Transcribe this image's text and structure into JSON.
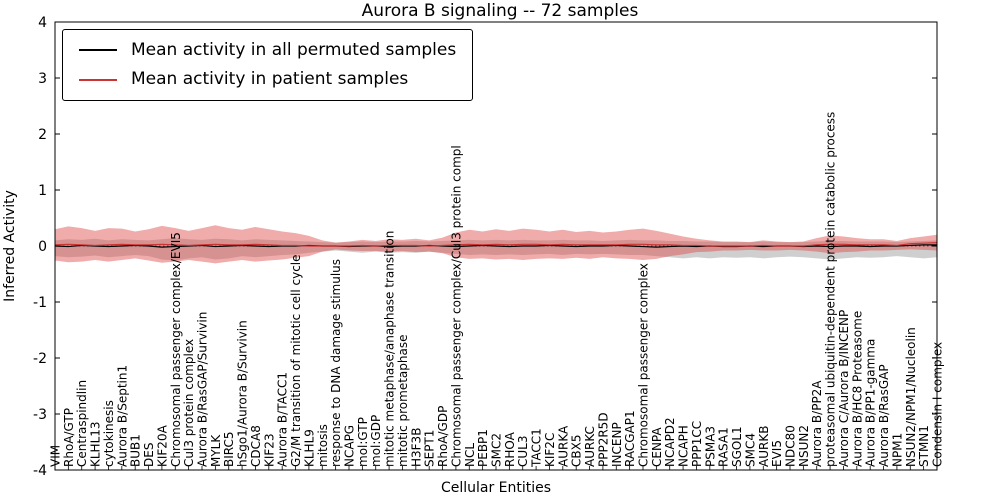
{
  "chart_data": {
    "type": "line",
    "title": "Aurora B signaling -- 72 samples",
    "xlabel": "Cellular Entities",
    "ylabel": "Inferred Activity",
    "ylim": [
      -4,
      4
    ],
    "yticks": [
      -4,
      -3,
      -2,
      -1,
      0,
      1,
      2,
      3,
      4
    ],
    "grid": false,
    "legend_position": "upper left",
    "zero_line_style": "dotted",
    "categories": [
      "VIM",
      "RhoA/GTP",
      "Centraspindlin",
      "KLHL13",
      "cytokinesis",
      "Aurora B/Septin1",
      "BUB1",
      "DES",
      "KIF20A",
      "Chromosomal passenger complex/EVI5",
      "Cul3 protein complex",
      "Aurora B/RasGAP/Survivin",
      "MYLK",
      "BIRC5",
      "hSgo1/Aurora B/Survivin",
      "CDCA8",
      "KIF23",
      "Aurora B/TACC1",
      "G2/M transition of mitotic cell cycle",
      "KLHL9",
      "mitosis",
      "response to DNA damage stimulus",
      "NCAPG",
      "mol:GTP",
      "mol:GDP",
      "mitotic metaphase/anaphase transition",
      "mitotic prometaphase",
      "H3F3B",
      "SEPT1",
      "RhoA/GDP",
      "Chromosomal passenger complex/Cul3 protein compl",
      "NCL",
      "PEBP1",
      "SMC2",
      "RHOA",
      "CUL3",
      "TACC1",
      "KIF2C",
      "AURKA",
      "CBX5",
      "AURKC",
      "PPP2R5D",
      "INCENP",
      "RACGAP1",
      "Chromosomal passenger complex",
      "CENPA",
      "NCAPD2",
      "NCAPH",
      "PPP1CC",
      "PSMA3",
      "RASA1",
      "SGOL1",
      "SMC4",
      "AURKB",
      "EVI5",
      "NDC80",
      "NSUN2",
      "Aurora B/PP2A",
      "proteasomal ubiquitin-dependent protein catabolic process",
      "Aurora C/Aurora B/INCENP",
      "Aurora B/HC8 Proteasome",
      "Aurora B/PP1-gamma",
      "Aurora B/RasGAP",
      "NPM1",
      "NSUN2/NPM1/Nucleolin",
      "STMN1",
      "Condensin I complex"
    ],
    "series": [
      {
        "name": "Mean activity in all permuted samples",
        "color": "#000000",
        "values": [
          0,
          -0.01,
          0.01,
          0,
          -0.01,
          0,
          0.01,
          0,
          -0.02,
          -0.01,
          0,
          0.01,
          -0.01,
          0,
          0.01,
          0,
          -0.01,
          0,
          0,
          0.01,
          0,
          0,
          -0.01,
          0,
          0,
          -0.01,
          0,
          0,
          0.01,
          0,
          -0.01,
          0,
          0.01,
          0,
          -0.01,
          0,
          0,
          0.01,
          0,
          -0.01,
          0,
          0,
          0.01,
          0,
          -0.01,
          -0.02,
          -0.01,
          0,
          -0.01,
          0,
          -0.01,
          -0.01,
          0,
          -0.01,
          0,
          0,
          -0.01,
          0,
          -0.01,
          0,
          0,
          -0.01,
          0,
          0,
          0.01,
          0.02,
          0.02
        ]
      },
      {
        "name": "Mean activity in patient samples",
        "color": "#cc3333",
        "values": [
          0.02,
          0.03,
          0.02,
          0.01,
          0.02,
          0.03,
          0.02,
          0.02,
          0.03,
          0.02,
          0.01,
          0.02,
          0.03,
          0.02,
          0.02,
          0.03,
          0.02,
          0.01,
          0.01,
          0,
          0,
          0,
          0,
          0.01,
          0,
          0.01,
          0.01,
          0.01,
          0,
          0.01,
          0.02,
          0.03,
          0.02,
          0.03,
          0.02,
          0.03,
          0.03,
          0.02,
          0.03,
          0.02,
          0.02,
          0.02,
          0.02,
          0.03,
          0.03,
          0.02,
          0.02,
          0.01,
          0.01,
          0,
          0,
          0,
          0,
          0.01,
          0,
          0,
          0,
          0.02,
          0.03,
          0.03,
          0.02,
          0.02,
          0.02,
          0.01,
          0.04,
          0.05,
          0.06
        ]
      }
    ],
    "bands": [
      {
        "name": "Permuted samples activity spread",
        "color": "#888888",
        "opacity": 0.4,
        "upper": [
          0.1,
          0.12,
          0.11,
          0.13,
          0.1,
          0.12,
          0.11,
          0.1,
          0.12,
          0.14,
          0.12,
          0.11,
          0.13,
          0.12,
          0.1,
          0.12,
          0.11,
          0.1,
          0.09,
          0.08,
          0.07,
          0.06,
          0.07,
          0.08,
          0.07,
          0.08,
          0.08,
          0.09,
          0.08,
          0.09,
          0.1,
          0.11,
          0.1,
          0.11,
          0.1,
          0.11,
          0.1,
          0.1,
          0.11,
          0.1,
          0.1,
          0.09,
          0.1,
          0.11,
          0.1,
          0.1,
          0.09,
          0.09,
          0.08,
          0.08,
          0.07,
          0.07,
          0.07,
          0.08,
          0.07,
          0.07,
          0.07,
          0.08,
          0.09,
          0.09,
          0.08,
          0.08,
          0.08,
          0.07,
          0.08,
          0.09,
          0.1
        ],
        "lower": [
          -0.18,
          -0.2,
          -0.19,
          -0.17,
          -0.2,
          -0.18,
          -0.16,
          -0.18,
          -0.24,
          -0.26,
          -0.22,
          -0.2,
          -0.24,
          -0.22,
          -0.18,
          -0.2,
          -0.18,
          -0.16,
          -0.15,
          -0.12,
          -0.1,
          -0.08,
          -0.1,
          -0.12,
          -0.1,
          -0.12,
          -0.11,
          -0.12,
          -0.1,
          -0.12,
          -0.14,
          -0.16,
          -0.15,
          -0.16,
          -0.15,
          -0.16,
          -0.15,
          -0.14,
          -0.16,
          -0.14,
          -0.15,
          -0.14,
          -0.15,
          -0.16,
          -0.16,
          -0.18,
          -0.2,
          -0.22,
          -0.2,
          -0.22,
          -0.2,
          -0.21,
          -0.2,
          -0.22,
          -0.2,
          -0.19,
          -0.2,
          -0.22,
          -0.24,
          -0.22,
          -0.2,
          -0.21,
          -0.2,
          -0.18,
          -0.2,
          -0.22,
          -0.2
        ]
      },
      {
        "name": "Patient samples activity spread",
        "color": "#dd4444",
        "opacity": 0.45,
        "upper": [
          0.3,
          0.35,
          0.32,
          0.27,
          0.32,
          0.31,
          0.26,
          0.3,
          0.36,
          0.32,
          0.27,
          0.32,
          0.37,
          0.32,
          0.29,
          0.34,
          0.3,
          0.26,
          0.23,
          0.18,
          0.1,
          0.06,
          0.08,
          0.11,
          0.09,
          0.12,
          0.11,
          0.13,
          0.1,
          0.15,
          0.24,
          0.29,
          0.26,
          0.3,
          0.27,
          0.31,
          0.29,
          0.26,
          0.29,
          0.25,
          0.27,
          0.24,
          0.26,
          0.29,
          0.31,
          0.27,
          0.22,
          0.17,
          0.13,
          0.1,
          0.08,
          0.08,
          0.07,
          0.1,
          0.08,
          0.07,
          0.08,
          0.14,
          0.19,
          0.17,
          0.14,
          0.12,
          0.12,
          0.09,
          0.14,
          0.17,
          0.2
        ],
        "lower": [
          -0.26,
          -0.29,
          -0.28,
          -0.25,
          -0.28,
          -0.25,
          -0.22,
          -0.26,
          -0.3,
          -0.28,
          -0.25,
          -0.28,
          -0.31,
          -0.28,
          -0.25,
          -0.28,
          -0.26,
          -0.24,
          -0.21,
          -0.18,
          -0.1,
          -0.06,
          -0.08,
          -0.09,
          -0.09,
          -0.1,
          -0.09,
          -0.11,
          -0.1,
          -0.13,
          -0.2,
          -0.23,
          -0.22,
          -0.24,
          -0.23,
          -0.25,
          -0.23,
          -0.22,
          -0.23,
          -0.21,
          -0.23,
          -0.2,
          -0.22,
          -0.23,
          -0.25,
          -0.23,
          -0.18,
          -0.15,
          -0.11,
          -0.1,
          -0.08,
          -0.08,
          -0.07,
          -0.08,
          -0.08,
          -0.07,
          -0.08,
          -0.1,
          -0.13,
          -0.11,
          -0.1,
          -0.08,
          -0.08,
          -0.07,
          -0.06,
          -0.07,
          -0.08
        ]
      }
    ]
  }
}
